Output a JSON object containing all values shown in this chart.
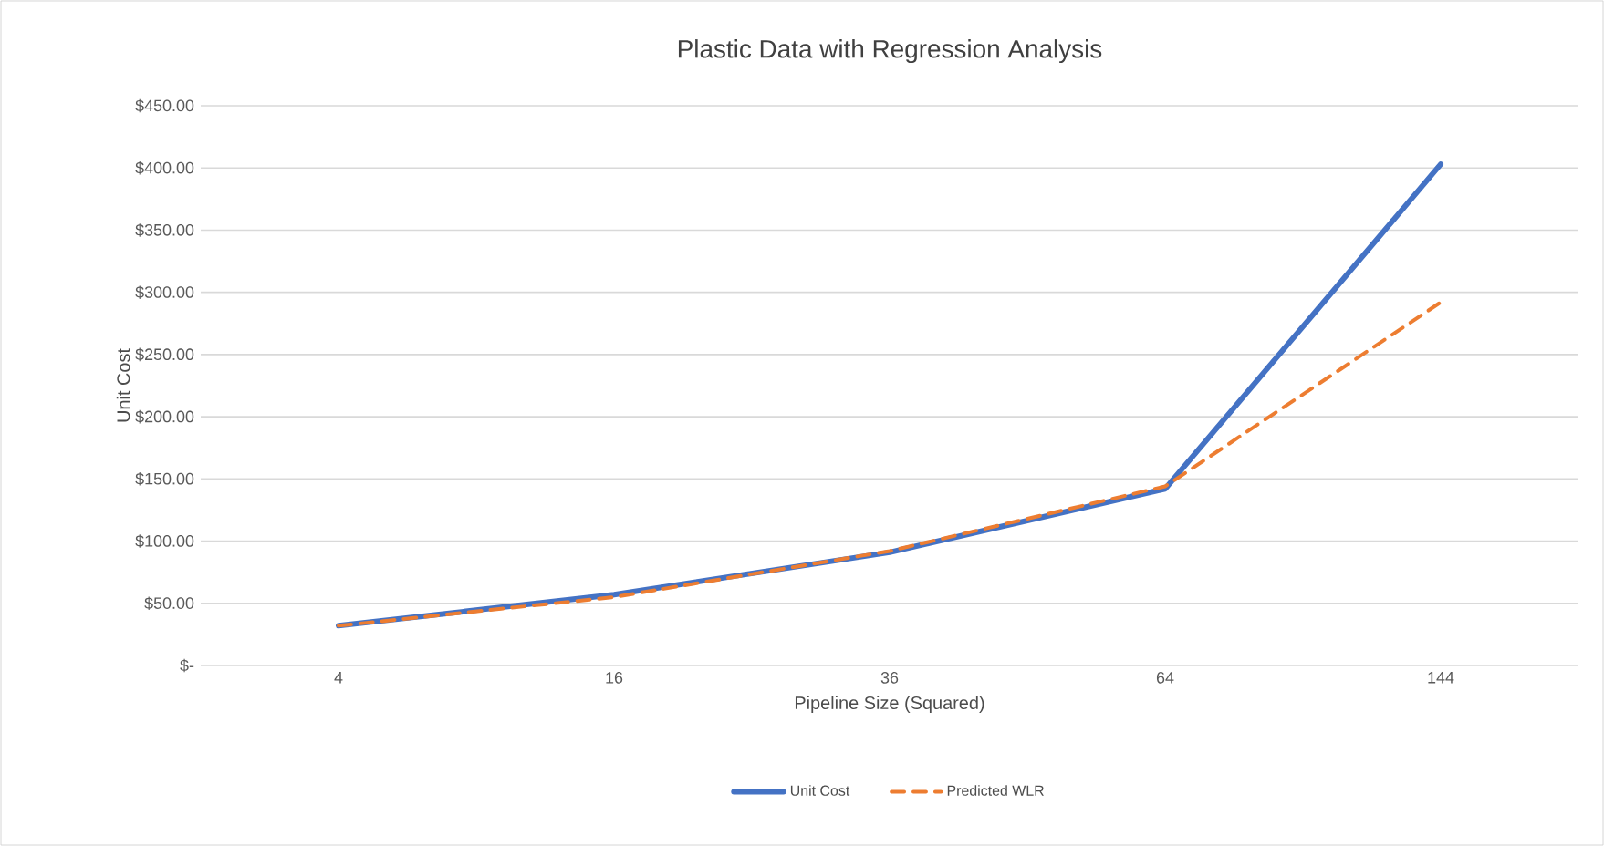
{
  "chart_data": {
    "type": "line",
    "title": "Plastic Data with Regression Analysis",
    "xlabel": "Pipeline Size (Squared)",
    "ylabel": "Unit Cost",
    "categories": [
      "4",
      "16",
      "36",
      "64",
      "144"
    ],
    "series": [
      {
        "name": "Unit Cost",
        "color": "#4472c4",
        "line_style": "solid",
        "values": [
          32,
          57,
          91,
          142,
          403
        ]
      },
      {
        "name": "Predicted WLR",
        "color": "#ed7d31",
        "line_style": "dashed",
        "values": [
          32,
          55,
          92,
          144,
          292
        ]
      }
    ],
    "ylim": [
      0,
      450
    ],
    "yticks": [
      {
        "value": 0,
        "label": "$-"
      },
      {
        "value": 50,
        "label": "$50.00"
      },
      {
        "value": 100,
        "label": "$100.00"
      },
      {
        "value": 150,
        "label": "$150.00"
      },
      {
        "value": 200,
        "label": "$200.00"
      },
      {
        "value": 250,
        "label": "$250.00"
      },
      {
        "value": 300,
        "label": "$300.00"
      },
      {
        "value": 350,
        "label": "$350.00"
      },
      {
        "value": 400,
        "label": "$400.00"
      },
      {
        "value": 450,
        "label": "$450.00"
      }
    ],
    "grid": "y",
    "legend": "bottom",
    "marker": "none"
  }
}
